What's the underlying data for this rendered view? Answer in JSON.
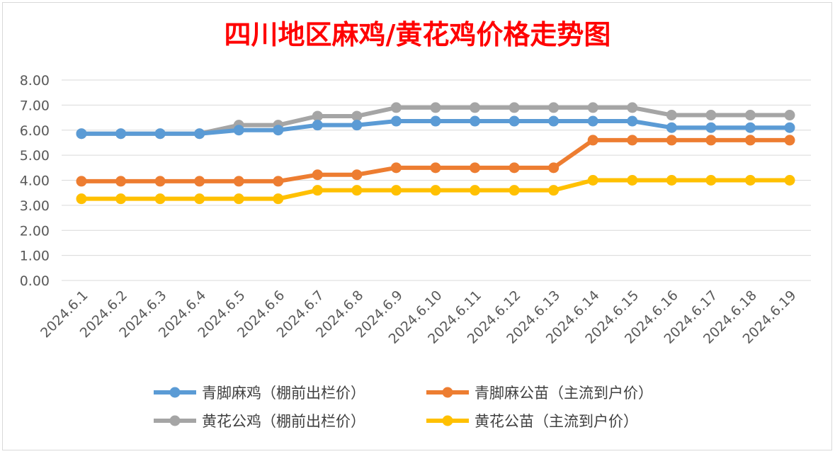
{
  "chart_data": {
    "type": "line",
    "title": "四川地区麻鸡/黄花鸡价格走势图",
    "xlabel": "",
    "ylabel": "",
    "ylim": [
      0,
      8
    ],
    "yticks": [
      "0.00",
      "1.00",
      "2.00",
      "3.00",
      "4.00",
      "5.00",
      "6.00",
      "7.00",
      "8.00"
    ],
    "grid": true,
    "legend_position": "bottom",
    "categories": [
      "2024.6.1",
      "2024.6.2",
      "2024.6.3",
      "2024.6.4",
      "2024.6.5",
      "2024.6.6",
      "2024.6.7",
      "2024.6.8",
      "2024.6.9",
      "2024.6.10",
      "2024.6.11",
      "2024.6.12",
      "2024.6.13",
      "2024.6.14",
      "2024.6.15",
      "2024.6.16",
      "2024.6.17",
      "2024.6.18",
      "2024.6.19"
    ],
    "series": [
      {
        "name": "黄花公鸡（棚前出栏价）",
        "color": "#a5a5a5",
        "values": [
          5.86,
          5.86,
          5.86,
          5.86,
          6.2,
          6.2,
          6.56,
          6.56,
          6.9,
          6.9,
          6.9,
          6.9,
          6.9,
          6.9,
          6.9,
          6.6,
          6.6,
          6.6,
          6.6
        ]
      },
      {
        "name": "青脚麻鸡（棚前出栏价）",
        "color": "#5b9bd5",
        "values": [
          5.86,
          5.86,
          5.86,
          5.86,
          6.0,
          6.0,
          6.2,
          6.2,
          6.36,
          6.36,
          6.36,
          6.36,
          6.36,
          6.36,
          6.36,
          6.1,
          6.1,
          6.1,
          6.1
        ]
      },
      {
        "name": "青脚麻公苗（主流到户价）",
        "color": "#ed7d31",
        "values": [
          3.96,
          3.96,
          3.96,
          3.96,
          3.96,
          3.96,
          4.22,
          4.22,
          4.5,
          4.5,
          4.5,
          4.5,
          4.5,
          5.6,
          5.6,
          5.6,
          5.6,
          5.6,
          5.6
        ]
      },
      {
        "name": "黄花公苗（主流到户价）",
        "color": "#ffc000",
        "values": [
          3.26,
          3.26,
          3.26,
          3.26,
          3.26,
          3.26,
          3.6,
          3.6,
          3.6,
          3.6,
          3.6,
          3.6,
          3.6,
          4.0,
          4.0,
          4.0,
          4.0,
          4.0,
          4.0
        ]
      }
    ],
    "legend_order": [
      1,
      2,
      0,
      3
    ]
  }
}
